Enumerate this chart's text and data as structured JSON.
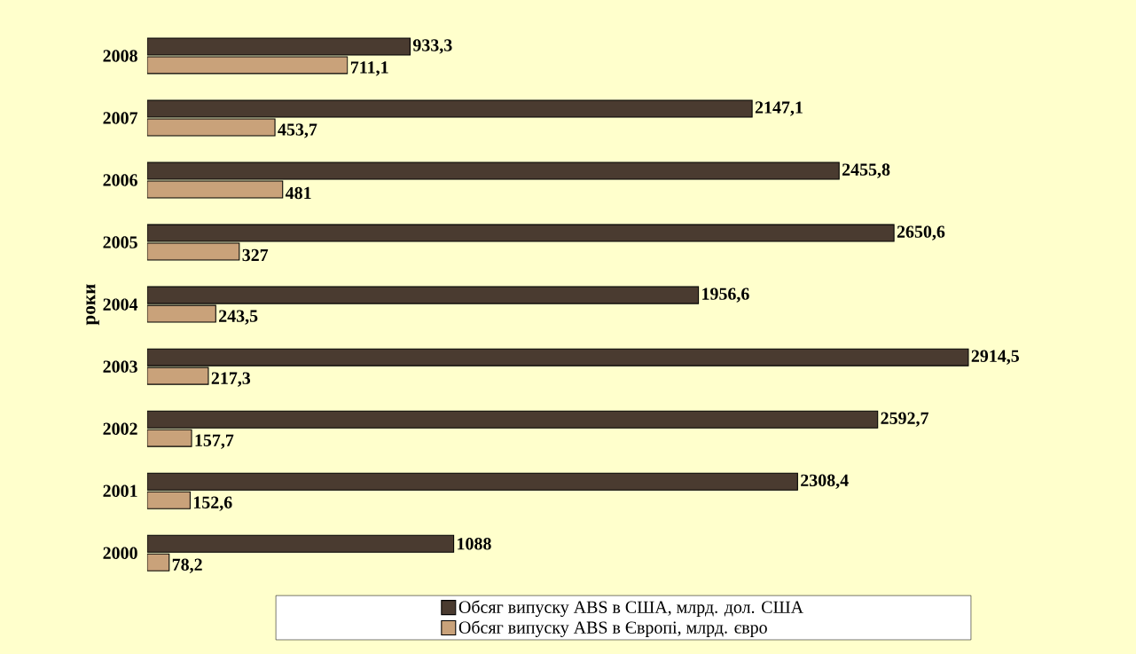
{
  "chart_data": {
    "type": "bar",
    "orientation": "horizontal",
    "ylabel": "роки",
    "categories": [
      "2008",
      "2007",
      "2006",
      "2005",
      "2004",
      "2003",
      "2002",
      "2001",
      "2000"
    ],
    "series": [
      {
        "name": "Обсяг випуску ABS в США, млрд. дол. США",
        "color": "#4a3b30",
        "values": [
          933.3,
          2147.1,
          2455.8,
          2650.6,
          1956.6,
          2914.5,
          2592.7,
          2308.4,
          1088
        ],
        "value_labels": [
          "933,3",
          "2147,1",
          "2455,8",
          "2650,6",
          "1956,6",
          "2914,5",
          "2592,7",
          "2308,4",
          "1088"
        ]
      },
      {
        "name": "Обсяг випуску ABS в Європі, млрд. євро",
        "color": "#c9a27a",
        "values": [
          711.1,
          453.7,
          481,
          327,
          243.5,
          217.3,
          157.7,
          152.6,
          78.2
        ],
        "value_labels": [
          "711,1",
          "453,7",
          "481",
          "327",
          "243,5",
          "217,3",
          "157,7",
          "152,6",
          "78,2"
        ]
      }
    ],
    "tick_labels": "y",
    "legend": "bottom"
  }
}
